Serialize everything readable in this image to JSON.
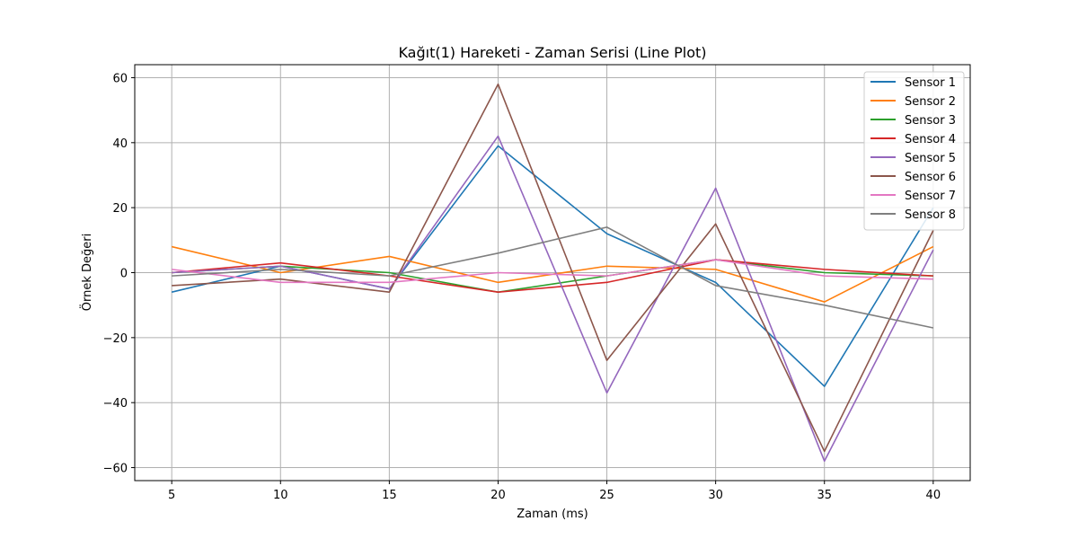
{
  "chart_data": {
    "type": "line",
    "title": "Kağıt(1) Hareketi - Zaman Serisi (Line Plot)",
    "xlabel": "Zaman (ms)",
    "ylabel": "Örnek Değeri",
    "x": [
      5,
      10,
      15,
      20,
      25,
      30,
      35,
      40
    ],
    "xlim": [
      3.3,
      41.7
    ],
    "ylim": [
      -64,
      64
    ],
    "xticks": [
      5,
      10,
      15,
      20,
      25,
      30,
      35,
      40
    ],
    "yticks": [
      -60,
      -40,
      -20,
      0,
      20,
      40,
      60
    ],
    "xtick_labels": [
      "5",
      "10",
      "15",
      "20",
      "25",
      "30",
      "35",
      "40"
    ],
    "ytick_labels": [
      "−60",
      "−40",
      "−20",
      "0",
      "20",
      "40",
      "60"
    ],
    "grid": true,
    "legend_position": "top-right",
    "series": [
      {
        "name": "Sensor 1",
        "color": "#1f77b4",
        "values": [
          -6,
          2,
          -5,
          39,
          12,
          -3,
          -35,
          20
        ]
      },
      {
        "name": "Sensor 2",
        "color": "#ff7f0e",
        "values": [
          8,
          0,
          5,
          -3,
          2,
          1,
          -9,
          8
        ]
      },
      {
        "name": "Sensor 3",
        "color": "#2ca02c",
        "values": [
          0,
          2,
          0,
          -6,
          -1,
          4,
          0,
          -1
        ]
      },
      {
        "name": "Sensor 4",
        "color": "#d62728",
        "values": [
          0,
          3,
          -1,
          -6,
          -3,
          4,
          1,
          -1
        ]
      },
      {
        "name": "Sensor 5",
        "color": "#9467bd",
        "values": [
          0,
          2,
          -5,
          42,
          -37,
          26,
          -58,
          7
        ]
      },
      {
        "name": "Sensor 6",
        "color": "#8c564b",
        "values": [
          -4,
          -2,
          -6,
          58,
          -27,
          15,
          -55,
          13
        ]
      },
      {
        "name": "Sensor 7",
        "color": "#e377c2",
        "values": [
          1,
          -3,
          -3,
          0,
          -1,
          4,
          -1,
          -2
        ]
      },
      {
        "name": "Sensor 8",
        "color": "#7f7f7f",
        "values": [
          -1,
          1,
          -1,
          6,
          14,
          -4,
          -10,
          -17
        ]
      }
    ]
  }
}
